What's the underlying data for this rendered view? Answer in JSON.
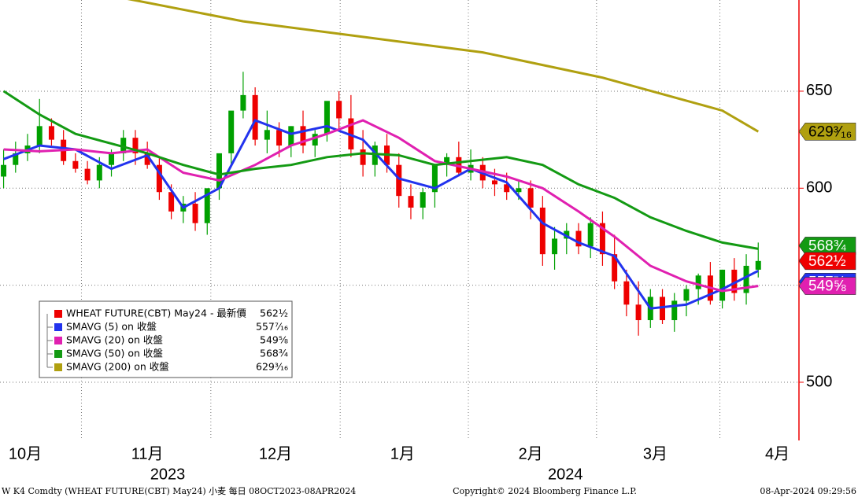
{
  "chart_data": {
    "type": "candlestick",
    "ylim": [
      470,
      697
    ],
    "yticks": [
      500,
      550,
      600,
      650
    ],
    "xlim": [
      -0.3,
      66.4
    ],
    "month_ticks": [
      {
        "value": 1.8,
        "label": "10月"
      },
      {
        "value": 12,
        "label": "11月"
      },
      {
        "value": 22.7,
        "label": "12月"
      },
      {
        "value": 33.3,
        "label": "1月"
      },
      {
        "value": 44,
        "label": "2月"
      },
      {
        "value": 54.4,
        "label": "3月"
      },
      {
        "value": 64.6,
        "label": "4月"
      }
    ],
    "year_ticks": [
      {
        "value": 13.7,
        "label": "2023"
      },
      {
        "value": 46.9,
        "label": "2024"
      }
    ],
    "xgrid": [
      6.5,
      17.3,
      28.1,
      38.8,
      49.5,
      59.8
    ],
    "grid": true,
    "up_color": "#00a000",
    "down_color": "#ee0000",
    "ohlc": {
      "name": "WHEAT FUTURE(CBT) May24 - 最新價",
      "color": "#ee0000",
      "open": [
        606,
        612,
        618,
        622,
        632,
        625,
        614,
        610,
        604,
        612,
        618,
        626,
        618,
        612,
        598,
        588,
        592,
        582,
        600,
        618,
        640,
        648,
        625,
        630,
        622,
        632,
        622,
        628,
        645,
        636,
        620,
        612,
        622,
        612,
        596,
        590,
        598,
        612,
        616,
        608,
        612,
        604,
        602,
        598,
        600,
        590,
        566,
        574,
        578,
        570,
        582,
        566,
        552,
        540,
        532,
        544,
        532,
        542,
        548,
        555,
        542,
        558,
        546,
        558
      ],
      "high": [
        620,
        624,
        628,
        646,
        636,
        630,
        618,
        614,
        616,
        620,
        630,
        630,
        624,
        616,
        602,
        596,
        598,
        590,
        606,
        628,
        660,
        652,
        640,
        634,
        632,
        640,
        630,
        634,
        650,
        648,
        630,
        624,
        628,
        618,
        602,
        600,
        606,
        618,
        624,
        620,
        616,
        610,
        608,
        604,
        604,
        596,
        580,
        582,
        582,
        585,
        588,
        576,
        558,
        552,
        548,
        548,
        546,
        550,
        556,
        562,
        558,
        564,
        566,
        572
      ],
      "low": [
        600,
        608,
        614,
        618,
        622,
        612,
        608,
        602,
        600,
        606,
        614,
        612,
        610,
        594,
        584,
        582,
        578,
        576,
        594,
        612,
        636,
        622,
        618,
        616,
        616,
        618,
        616,
        624,
        630,
        616,
        606,
        606,
        608,
        590,
        584,
        584,
        590,
        606,
        606,
        604,
        600,
        596,
        594,
        594,
        584,
        560,
        558,
        566,
        566,
        564,
        560,
        548,
        534,
        524,
        528,
        530,
        526,
        534,
        540,
        540,
        538,
        542,
        540,
        554
      ],
      "close": [
        612,
        618,
        622,
        632,
        625,
        614,
        610,
        604,
        612,
        618,
        626,
        618,
        612,
        598,
        588,
        592,
        582,
        600,
        618,
        640,
        648,
        625,
        630,
        622,
        632,
        622,
        628,
        645,
        636,
        620,
        612,
        622,
        612,
        596,
        590,
        598,
        612,
        616,
        608,
        612,
        604,
        602,
        598,
        600,
        590,
        566,
        574,
        578,
        570,
        582,
        566,
        552,
        540,
        532,
        544,
        532,
        542,
        548,
        555,
        542,
        558,
        546,
        560,
        562.5
      ],
      "last": 562.5,
      "last_label": "562½"
    },
    "series": [
      {
        "name": "SMAVG (5)  on 收盤",
        "color": "#2233ee",
        "x": [
          0,
          3,
          6,
          9,
          12,
          15,
          18,
          21,
          24,
          27,
          30,
          33,
          36,
          39,
          42,
          45,
          48,
          51,
          54,
          57,
          60,
          63
        ],
        "values": [
          615,
          622,
          620,
          610,
          617,
          590,
          600,
          635,
          628,
          632,
          625,
          605,
          600,
          610,
          603,
          582,
          572,
          565,
          538,
          540,
          548,
          557.4375
        ],
        "last_label": "557⁷⁄₁₆"
      },
      {
        "name": "SMAVG (20)  on 收盤",
        "color": "#e020b0",
        "x": [
          0,
          3,
          6,
          9,
          12,
          15,
          18,
          21,
          24,
          27,
          30,
          33,
          36,
          39,
          42,
          45,
          48,
          51,
          54,
          57,
          60,
          63
        ],
        "values": [
          620,
          619,
          620,
          618,
          620,
          608,
          604,
          612,
          622,
          628,
          635,
          626,
          614,
          610,
          606,
          600,
          588,
          575,
          560,
          552,
          547,
          549.625
        ],
        "last_label": "549⅝"
      },
      {
        "name": "SMAVG (50)  on 收盤",
        "color": "#139a13",
        "x": [
          0,
          3,
          6,
          9,
          12,
          15,
          18,
          21,
          24,
          27,
          30,
          33,
          36,
          39,
          42,
          45,
          48,
          51,
          54,
          57,
          60,
          63
        ],
        "values": [
          650,
          638,
          628,
          623,
          618,
          612,
          607,
          610,
          612,
          616,
          618,
          617,
          612,
          614,
          616,
          612,
          602,
          595,
          585,
          578,
          572,
          568.75
        ],
        "last_label": "568¾"
      },
      {
        "name": "SMAVG (200)  on 收盤",
        "color": "#b0a010",
        "x": [
          10,
          20,
          30,
          40,
          50,
          60,
          63
        ],
        "values": [
          698,
          686,
          678,
          670,
          657,
          640,
          629.1875
        ],
        "last_label": "629³⁄₁₆"
      }
    ],
    "footer_left": "W K4 Comdty (WHEAT FUTURE(CBT) May24) 小麦  每日 08OCT2023-08APR2024",
    "footer_center": "Copyright© 2024 Bloomberg Finance L.P.",
    "footer_right": "08-Apr-2024 09:29:56"
  }
}
